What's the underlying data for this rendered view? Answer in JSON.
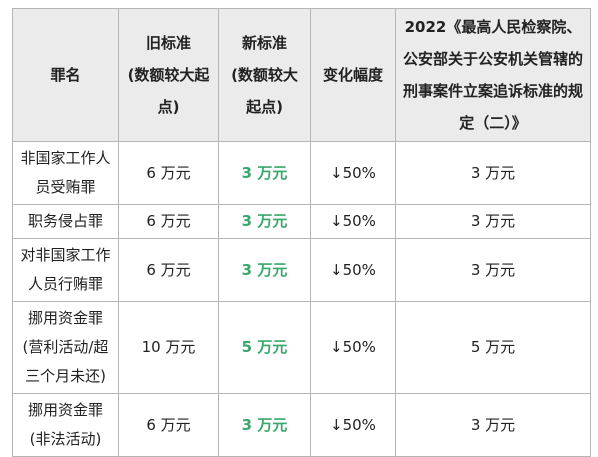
{
  "table": {
    "header": [
      [
        "罪名"
      ],
      [
        "旧标准",
        "(数额较大起点)"
      ],
      [
        "新标准",
        "(数额较大起点)"
      ],
      [
        "变化幅度"
      ],
      [
        "2022《最高人民检察院、公安部关于公安机关管辖的刑事案件立案追诉标准的规定（二）》"
      ]
    ],
    "rows": [
      [
        "非国家工作人员受贿罪",
        "6 万元",
        "3 万元",
        "↓50%",
        "3 万元"
      ],
      [
        "职务侵占罪",
        "6 万元",
        "3 万元",
        "↓50%",
        "3 万元"
      ],
      [
        "对非国家工作人员行贿罪",
        "6 万元",
        "3 万元",
        "↓50%",
        "3 万元"
      ],
      [
        "挪用资金罪(营利活动/超三个月未还)",
        "10 万元",
        "5 万元",
        "↓50%",
        "5 万元"
      ],
      [
        "挪用资金罪(非法活动)",
        "6 万元",
        "3 万元",
        "↓50%",
        "3 万元"
      ]
    ]
  }
}
